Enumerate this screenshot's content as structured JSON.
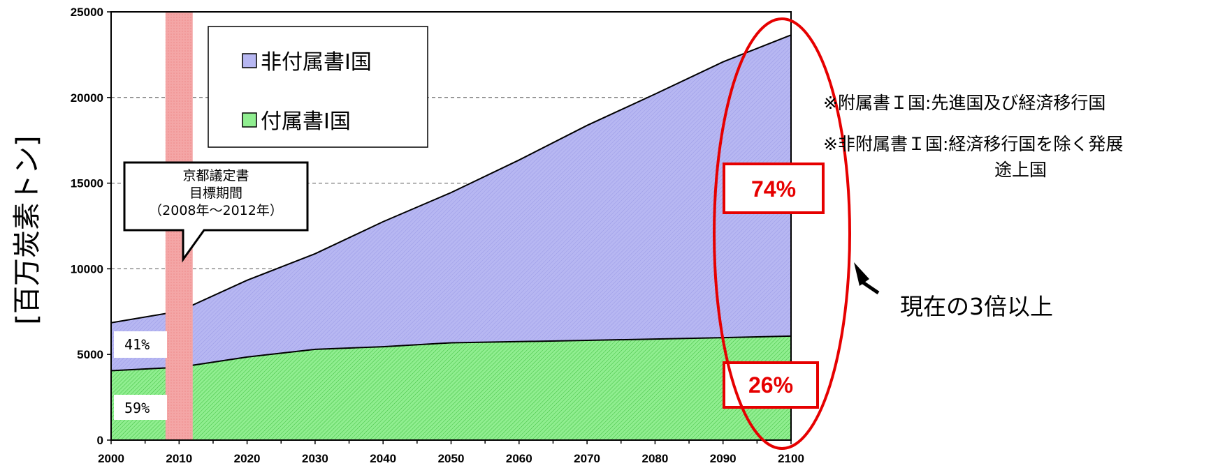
{
  "chart_data": {
    "type": "area",
    "stacked": true,
    "x": [
      2000,
      2010,
      2020,
      2030,
      2040,
      2050,
      2060,
      2070,
      2080,
      2090,
      2100
    ],
    "series": [
      {
        "name": "付属書I国",
        "values": [
          4050,
          4250,
          4850,
          5300,
          5450,
          5680,
          5750,
          5820,
          5900,
          5980,
          6070
        ],
        "color": "#90ee90"
      },
      {
        "name": "非付属書I国",
        "values": [
          2800,
          3270,
          4480,
          5580,
          7300,
          8770,
          10600,
          12550,
          14300,
          16100,
          17580
        ],
        "color": "#b7b7f2"
      }
    ],
    "xlim": [
      2000,
      2100
    ],
    "ylim": [
      0,
      25000
    ],
    "x_ticks": [
      "2000",
      "2010",
      "2020",
      "2030",
      "2040",
      "2050",
      "2060",
      "2070",
      "2080",
      "2090",
      "2100"
    ],
    "y_ticks": [
      "0",
      "5000",
      "10000",
      "15000",
      "20000",
      "25000"
    ],
    "ylabel": "[百万炭素トン]",
    "grid": "horizontal dashed",
    "legend_position": "top-left",
    "highlight_band": {
      "from": 2008,
      "to": 2012,
      "color": "#f4a6a6"
    },
    "callout": [
      "京都議定書",
      "目標期間",
      "（2008年～2012年）"
    ],
    "labels_2000": {
      "upper": "41%",
      "lower": "59%"
    },
    "labels_2100": {
      "upper": "74%",
      "lower": "26%"
    },
    "notes": [
      "※附属書Ｉ国:先進国及び経済移行国",
      "※非附属書Ｉ国:経済移行国を除く発展",
      "途上国"
    ],
    "arrow_label": "現在の3倍以上"
  }
}
